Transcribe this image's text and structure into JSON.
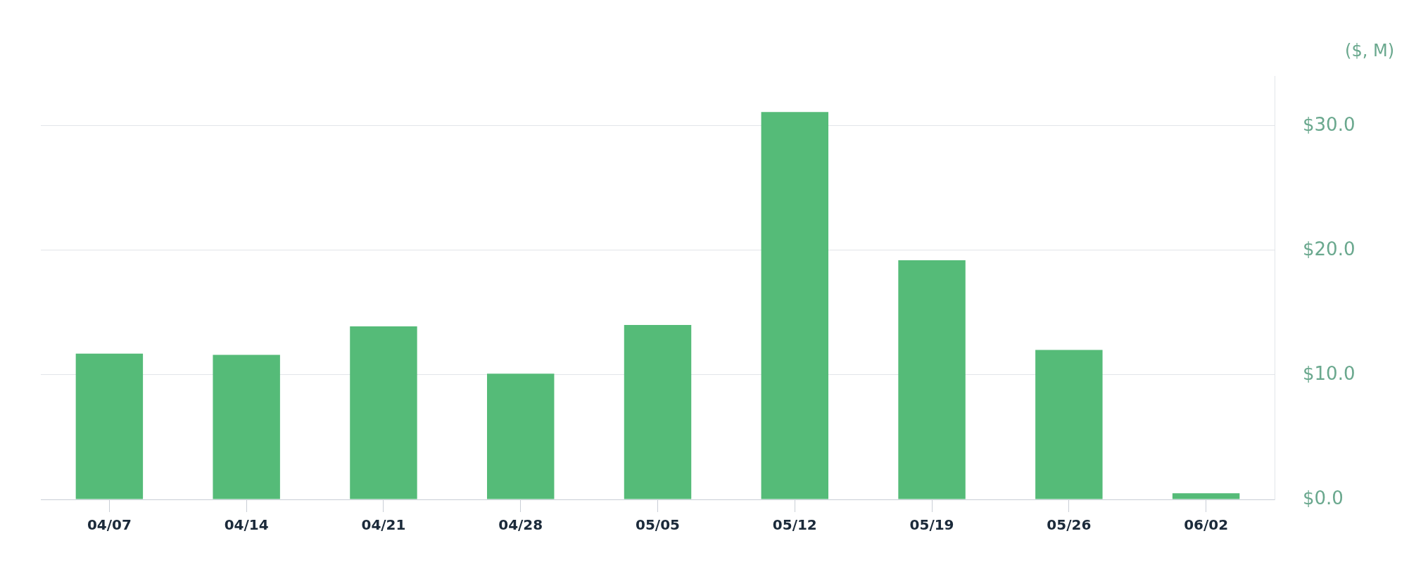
{
  "chart_data": {
    "type": "bar",
    "ylabel": "($, M)",
    "categories": [
      "04/07",
      "04/14",
      "04/21",
      "04/28",
      "05/05",
      "05/12",
      "05/19",
      "05/26",
      "06/02"
    ],
    "values": [
      11.7,
      11.6,
      13.9,
      10.1,
      14.0,
      31.1,
      19.2,
      12.0,
      0.5
    ],
    "color": "#55bb78",
    "ylim": [
      0,
      34
    ],
    "yticks": [
      {
        "value": 0,
        "label": "$0.0"
      },
      {
        "value": 10,
        "label": "$10.0"
      },
      {
        "value": 20,
        "label": "$20.0"
      },
      {
        "value": 30,
        "label": "$30.0"
      }
    ],
    "grid": "y",
    "legend": false
  }
}
